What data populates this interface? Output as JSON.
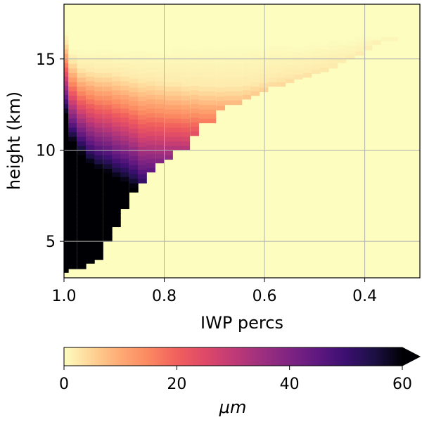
{
  "chart_data": {
    "type": "heatmap",
    "title": "",
    "xlabel": "IWP percs",
    "ylabel": "height (km)",
    "xlim": [
      1.0,
      0.29
    ],
    "ylim": [
      3.0,
      18.0
    ],
    "x_ticks": [
      {
        "value": 1.0,
        "label": "1.0"
      },
      {
        "value": 0.8,
        "label": "0.8"
      },
      {
        "value": 0.6,
        "label": "0.6"
      },
      {
        "value": 0.4,
        "label": "0.4"
      }
    ],
    "y_ticks": [
      {
        "value": 5,
        "label": "5"
      },
      {
        "value": 10,
        "label": "10"
      },
      {
        "value": 15,
        "label": "15"
      }
    ],
    "grid": true,
    "background_value": 0,
    "colorbar": {
      "label": "μm",
      "min": 0,
      "max": 60,
      "extend": "max",
      "ticks": [
        {
          "value": 0,
          "label": "0"
        },
        {
          "value": 20,
          "label": "20"
        },
        {
          "value": 40,
          "label": "40"
        },
        {
          "value": 60,
          "label": "60"
        }
      ],
      "colormap": "magma_r",
      "stops": [
        "#fcfdbf",
        "#fed395",
        "#feaa74",
        "#fb8861",
        "#f1605d",
        "#de4968",
        "#c03a76",
        "#9e2f7f",
        "#7e2482",
        "#5f187f",
        "#3b0f70",
        "#1c1044",
        "#000004"
      ]
    },
    "columns": [
      {
        "x": 1.0,
        "top": 16.5,
        "half": 16.0,
        "black": 12.0,
        "bottom": 3.3
      },
      {
        "x": 0.983,
        "top": 15.5,
        "half": 15.0,
        "black": 10.5,
        "bottom": 3.5
      },
      {
        "x": 0.965,
        "top": 15.5,
        "half": 14.6,
        "black": 9.8,
        "bottom": 3.5
      },
      {
        "x": 0.948,
        "top": 15.5,
        "half": 14.5,
        "black": 9.3,
        "bottom": 3.8
      },
      {
        "x": 0.931,
        "top": 15.5,
        "half": 14.4,
        "black": 9.0,
        "bottom": 4.0
      },
      {
        "x": 0.913,
        "top": 15.5,
        "half": 14.4,
        "black": 8.8,
        "bottom": 5.0
      },
      {
        "x": 0.896,
        "top": 15.5,
        "half": 14.3,
        "black": 8.5,
        "bottom": 5.8
      },
      {
        "x": 0.879,
        "top": 15.5,
        "half": 14.2,
        "black": 8.3,
        "bottom": 6.8
      },
      {
        "x": 0.861,
        "top": 15.5,
        "half": 14.1,
        "black": 8.0,
        "bottom": 7.7
      },
      {
        "x": 0.844,
        "top": 15.5,
        "half": 14.0,
        "black": 7.5,
        "bottom": 8.2
      },
      {
        "x": 0.827,
        "top": 15.5,
        "half": 14.0,
        "black": 7.5,
        "bottom": 8.8
      },
      {
        "x": 0.809,
        "top": 15.5,
        "half": 13.9,
        "black": 7.5,
        "bottom": 9.3
      },
      {
        "x": 0.792,
        "top": 15.5,
        "half": 13.8,
        "black": 7.5,
        "bottom": 9.5
      },
      {
        "x": 0.775,
        "top": 15.7,
        "half": 13.8,
        "black": 7.5,
        "bottom": 10.0
      },
      {
        "x": 0.758,
        "top": 15.7,
        "half": 13.7,
        "black": 7.5,
        "bottom": 10.0
      },
      {
        "x": 0.74,
        "top": 15.7,
        "half": 13.7,
        "black": 7.5,
        "bottom": 10.8
      },
      {
        "x": 0.723,
        "top": 15.7,
        "half": 13.6,
        "black": 7.5,
        "bottom": 11.5
      },
      {
        "x": 0.706,
        "top": 15.7,
        "half": 13.6,
        "black": 7.5,
        "bottom": 11.5
      },
      {
        "x": 0.688,
        "top": 15.7,
        "half": 13.6,
        "black": 7.5,
        "bottom": 12.2
      },
      {
        "x": 0.671,
        "top": 15.8,
        "half": 13.6,
        "black": 7.5,
        "bottom": 12.5
      },
      {
        "x": 0.654,
        "top": 15.8,
        "half": 13.6,
        "black": 7.5,
        "bottom": 12.5
      },
      {
        "x": 0.636,
        "top": 15.8,
        "half": 13.7,
        "black": 7.5,
        "bottom": 12.8
      },
      {
        "x": 0.619,
        "top": 15.8,
        "half": 13.8,
        "black": 7.5,
        "bottom": 13.0
      },
      {
        "x": 0.602,
        "top": 15.7,
        "half": 13.9,
        "black": 7.5,
        "bottom": 13.2
      },
      {
        "x": 0.584,
        "top": 15.8,
        "half": 14.0,
        "black": 7.5,
        "bottom": 13.5
      },
      {
        "x": 0.567,
        "top": 15.8,
        "half": 14.1,
        "black": 7.5,
        "bottom": 13.5
      },
      {
        "x": 0.55,
        "top": 15.8,
        "half": 14.2,
        "black": 7.5,
        "bottom": 13.7
      },
      {
        "x": 0.533,
        "top": 15.8,
        "half": 14.3,
        "black": 7.5,
        "bottom": 13.9
      },
      {
        "x": 0.515,
        "top": 15.8,
        "half": 14.4,
        "black": 7.5,
        "bottom": 14.0
      },
      {
        "x": 0.498,
        "top": 15.9,
        "half": 14.5,
        "black": 7.5,
        "bottom": 14.2
      },
      {
        "x": 0.481,
        "top": 15.9,
        "half": 14.6,
        "black": 7.5,
        "bottom": 14.3
      },
      {
        "x": 0.463,
        "top": 16.0,
        "half": 14.7,
        "black": 7.5,
        "bottom": 14.5
      },
      {
        "x": 0.446,
        "top": 16.0,
        "half": 14.8,
        "black": 7.5,
        "bottom": 14.8
      },
      {
        "x": 0.429,
        "top": 16.0,
        "half": 15.0,
        "black": 7.5,
        "bottom": 15.0
      },
      {
        "x": 0.411,
        "top": 16.2,
        "half": 15.2,
        "black": 7.5,
        "bottom": 15.2
      },
      {
        "x": 0.394,
        "top": 16.2,
        "half": 15.5,
        "black": 7.5,
        "bottom": 15.5
      },
      {
        "x": 0.377,
        "top": 16.2,
        "half": 15.8,
        "black": 7.5,
        "bottom": 15.8
      },
      {
        "x": 0.359,
        "top": 16.2,
        "half": 16.0,
        "black": 7.5,
        "bottom": 16.0
      },
      {
        "x": 0.342,
        "top": 16.2,
        "half": 16.0,
        "black": 7.5,
        "bottom": 16.0
      },
      {
        "x": 0.325,
        "top": 16.2,
        "half": 16.1,
        "black": 7.5,
        "bottom": 16.1
      }
    ]
  }
}
